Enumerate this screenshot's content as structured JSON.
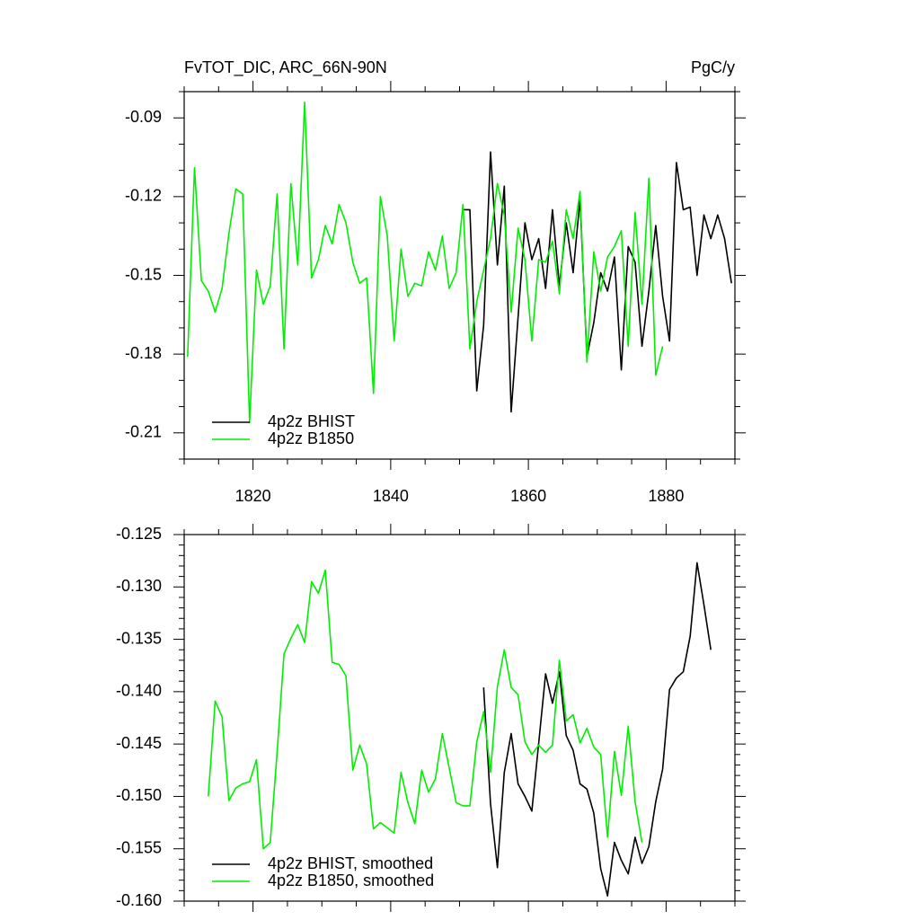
{
  "chart_data": [
    {
      "type": "line",
      "title": "FvTOT_DIC, ARC_66N-90N",
      "units": "PgC/y",
      "x": [
        1810.5,
        1811.5,
        1812.5,
        1813.5,
        1814.5,
        1815.5,
        1816.5,
        1817.5,
        1818.5,
        1819.5,
        1820.5,
        1821.5,
        1822.5,
        1823.5,
        1824.5,
        1825.5,
        1826.5,
        1827.5,
        1828.5,
        1829.5,
        1830.5,
        1831.5,
        1832.5,
        1833.5,
        1834.5,
        1835.5,
        1836.5,
        1837.5,
        1838.5,
        1839.5,
        1840.5,
        1841.5,
        1842.5,
        1843.5,
        1844.5,
        1845.5,
        1846.5,
        1847.5,
        1848.5,
        1849.5,
        1850.5,
        1851.5,
        1852.5,
        1853.5,
        1854.5,
        1855.5,
        1856.5,
        1857.5,
        1858.5,
        1859.5,
        1860.5,
        1861.5,
        1862.5,
        1863.5,
        1864.5,
        1865.5,
        1866.5,
        1867.5,
        1868.5,
        1869.5,
        1870.5,
        1871.5,
        1872.5,
        1873.5,
        1874.5,
        1875.5,
        1876.5,
        1877.5,
        1878.5,
        1879.5,
        1880.5,
        1881.5,
        1882.5,
        1883.5,
        1884.5,
        1885.5,
        1886.5,
        1887.5,
        1888.5,
        1889.5
      ],
      "series": [
        {
          "name": "4p2z BHIST",
          "color": "#000000",
          "values": [
            null,
            null,
            null,
            null,
            null,
            null,
            null,
            null,
            null,
            null,
            null,
            null,
            null,
            null,
            null,
            null,
            null,
            null,
            null,
            null,
            null,
            null,
            null,
            null,
            null,
            null,
            null,
            null,
            null,
            null,
            null,
            null,
            null,
            null,
            null,
            null,
            null,
            null,
            null,
            null,
            -0.125,
            -0.125,
            -0.194,
            -0.169,
            -0.103,
            -0.146,
            -0.116,
            -0.202,
            -0.166,
            -0.13,
            -0.144,
            -0.136,
            -0.155,
            -0.125,
            -0.154,
            -0.13,
            -0.149,
            -0.121,
            -0.181,
            -0.168,
            -0.149,
            -0.156,
            -0.143,
            -0.186,
            -0.139,
            -0.145,
            -0.177,
            -0.156,
            -0.131,
            -0.158,
            -0.175,
            -0.107,
            -0.125,
            -0.124,
            -0.15,
            -0.127,
            -0.136,
            -0.127,
            -0.136,
            -0.153
          ]
        },
        {
          "name": "4p2z B1850",
          "color": "#00ee00",
          "values": [
            -0.181,
            -0.109,
            -0.152,
            -0.156,
            -0.164,
            -0.155,
            -0.134,
            -0.117,
            -0.119,
            -0.206,
            -0.148,
            -0.161,
            -0.154,
            -0.119,
            -0.178,
            -0.115,
            -0.146,
            -0.084,
            -0.151,
            -0.144,
            -0.131,
            -0.138,
            -0.123,
            -0.13,
            -0.145,
            -0.153,
            -0.151,
            -0.195,
            -0.12,
            -0.135,
            -0.175,
            -0.14,
            -0.158,
            -0.153,
            -0.154,
            -0.141,
            -0.148,
            -0.135,
            -0.155,
            -0.149,
            -0.123,
            -0.178,
            -0.16,
            -0.148,
            -0.136,
            -0.115,
            -0.127,
            -0.164,
            -0.132,
            -0.144,
            -0.175,
            -0.144,
            -0.145,
            -0.137,
            -0.157,
            -0.125,
            -0.136,
            -0.118,
            -0.183,
            -0.141,
            -0.156,
            -0.143,
            -0.139,
            -0.133,
            -0.177,
            -0.126,
            -0.161,
            -0.113,
            -0.188,
            -0.177,
            null,
            null,
            null,
            null,
            null,
            null,
            null,
            null,
            null,
            null
          ]
        }
      ],
      "xlim": [
        1810,
        1890
      ],
      "xticks": [
        1820,
        1840,
        1860,
        1880
      ],
      "xminor": 4,
      "xtick_labels": true,
      "ylim": [
        -0.22,
        -0.08
      ],
      "yticks": [
        -0.21,
        -0.18,
        -0.15,
        -0.12,
        -0.09
      ],
      "yminor": 3,
      "legend": "lower left"
    },
    {
      "type": "line",
      "x": [
        1810.5,
        1811.5,
        1812.5,
        1813.5,
        1814.5,
        1815.5,
        1816.5,
        1817.5,
        1818.5,
        1819.5,
        1820.5,
        1821.5,
        1822.5,
        1823.5,
        1824.5,
        1825.5,
        1826.5,
        1827.5,
        1828.5,
        1829.5,
        1830.5,
        1831.5,
        1832.5,
        1833.5,
        1834.5,
        1835.5,
        1836.5,
        1837.5,
        1838.5,
        1839.5,
        1840.5,
        1841.5,
        1842.5,
        1843.5,
        1844.5,
        1845.5,
        1846.5,
        1847.5,
        1848.5,
        1849.5,
        1850.5,
        1851.5,
        1852.5,
        1853.5,
        1854.5,
        1855.5,
        1856.5,
        1857.5,
        1858.5,
        1859.5,
        1860.5,
        1861.5,
        1862.5,
        1863.5,
        1864.5,
        1865.5,
        1866.5,
        1867.5,
        1868.5,
        1869.5,
        1870.5,
        1871.5,
        1872.5,
        1873.5,
        1874.5,
        1875.5,
        1876.5,
        1877.5,
        1878.5,
        1879.5,
        1880.5,
        1881.5,
        1882.5,
        1883.5,
        1884.5,
        1885.5,
        1886.5,
        1887.5,
        1888.5,
        1889.5
      ],
      "series": [
        {
          "name": "4p2z BHIST, smoothed",
          "color": "#000000",
          "values": [
            null,
            null,
            null,
            null,
            null,
            null,
            null,
            null,
            null,
            null,
            null,
            null,
            null,
            null,
            null,
            null,
            null,
            null,
            null,
            null,
            null,
            null,
            null,
            null,
            null,
            null,
            null,
            null,
            null,
            null,
            null,
            null,
            null,
            null,
            null,
            null,
            null,
            null,
            null,
            null,
            null,
            null,
            null,
            -0.1396,
            -0.1507,
            -0.1568,
            -0.1477,
            -0.144,
            -0.1488,
            -0.15,
            -0.1514,
            -0.1449,
            -0.1383,
            -0.1411,
            -0.1381,
            -0.1442,
            -0.1456,
            -0.1488,
            -0.1493,
            -0.1516,
            -0.1569,
            -0.1595,
            -0.1544,
            -0.1561,
            -0.1574,
            -0.1539,
            -0.1564,
            -0.1548,
            -0.1505,
            -0.1474,
            -0.1398,
            -0.1387,
            -0.1381,
            -0.1347,
            -0.1277,
            -0.1317,
            -0.136,
            null,
            null,
            null
          ]
        },
        {
          "name": "4p2z B1850, smoothed",
          "color": "#00ee00",
          "values": [
            null,
            null,
            null,
            -0.15,
            -0.1409,
            -0.1424,
            -0.1504,
            -0.1492,
            -0.1488,
            -0.1486,
            -0.1465,
            -0.155,
            -0.1544,
            -0.1458,
            -0.1364,
            -0.1349,
            -0.1336,
            -0.1353,
            -0.1295,
            -0.1306,
            -0.1284,
            -0.1372,
            -0.1374,
            -0.1385,
            -0.1475,
            -0.1451,
            -0.1469,
            -0.1531,
            -0.1525,
            -0.153,
            -0.1535,
            -0.1477,
            -0.1506,
            -0.1526,
            -0.1475,
            -0.1496,
            -0.1483,
            -0.144,
            -0.1473,
            -0.1506,
            -0.1509,
            -0.1509,
            -0.1448,
            -0.1419,
            -0.1477,
            -0.1395,
            -0.136,
            -0.1396,
            -0.1403,
            -0.1448,
            -0.146,
            -0.1451,
            -0.1458,
            -0.1451,
            -0.137,
            -0.1428,
            -0.1422,
            -0.1449,
            -0.1435,
            -0.1453,
            -0.146,
            -0.1539,
            -0.1457,
            -0.1499,
            -0.1433,
            -0.1505,
            -0.1544,
            null,
            null,
            null,
            null,
            null,
            null,
            null,
            null,
            null,
            null,
            null,
            null,
            null
          ]
        }
      ],
      "xlim": [
        1810,
        1890
      ],
      "xticks": [
        1820,
        1840,
        1860,
        1880
      ],
      "xminor": 4,
      "xtick_labels": false,
      "ylim": [
        -0.16,
        -0.125
      ],
      "yticks": [
        {
          "value": -0.16,
          "label": "-0.160"
        },
        {
          "value": -0.155,
          "label": "-0.155"
        },
        {
          "value": -0.15,
          "label": "-0.150"
        },
        {
          "value": -0.145,
          "label": "-0.145"
        },
        {
          "value": -0.14,
          "label": "-0.140"
        },
        {
          "value": -0.135,
          "label": "-0.135"
        },
        {
          "value": -0.13,
          "label": "-0.130"
        },
        {
          "value": -0.125,
          "label": "-0.125"
        }
      ],
      "yminor": 5,
      "legend": "lower left"
    }
  ]
}
